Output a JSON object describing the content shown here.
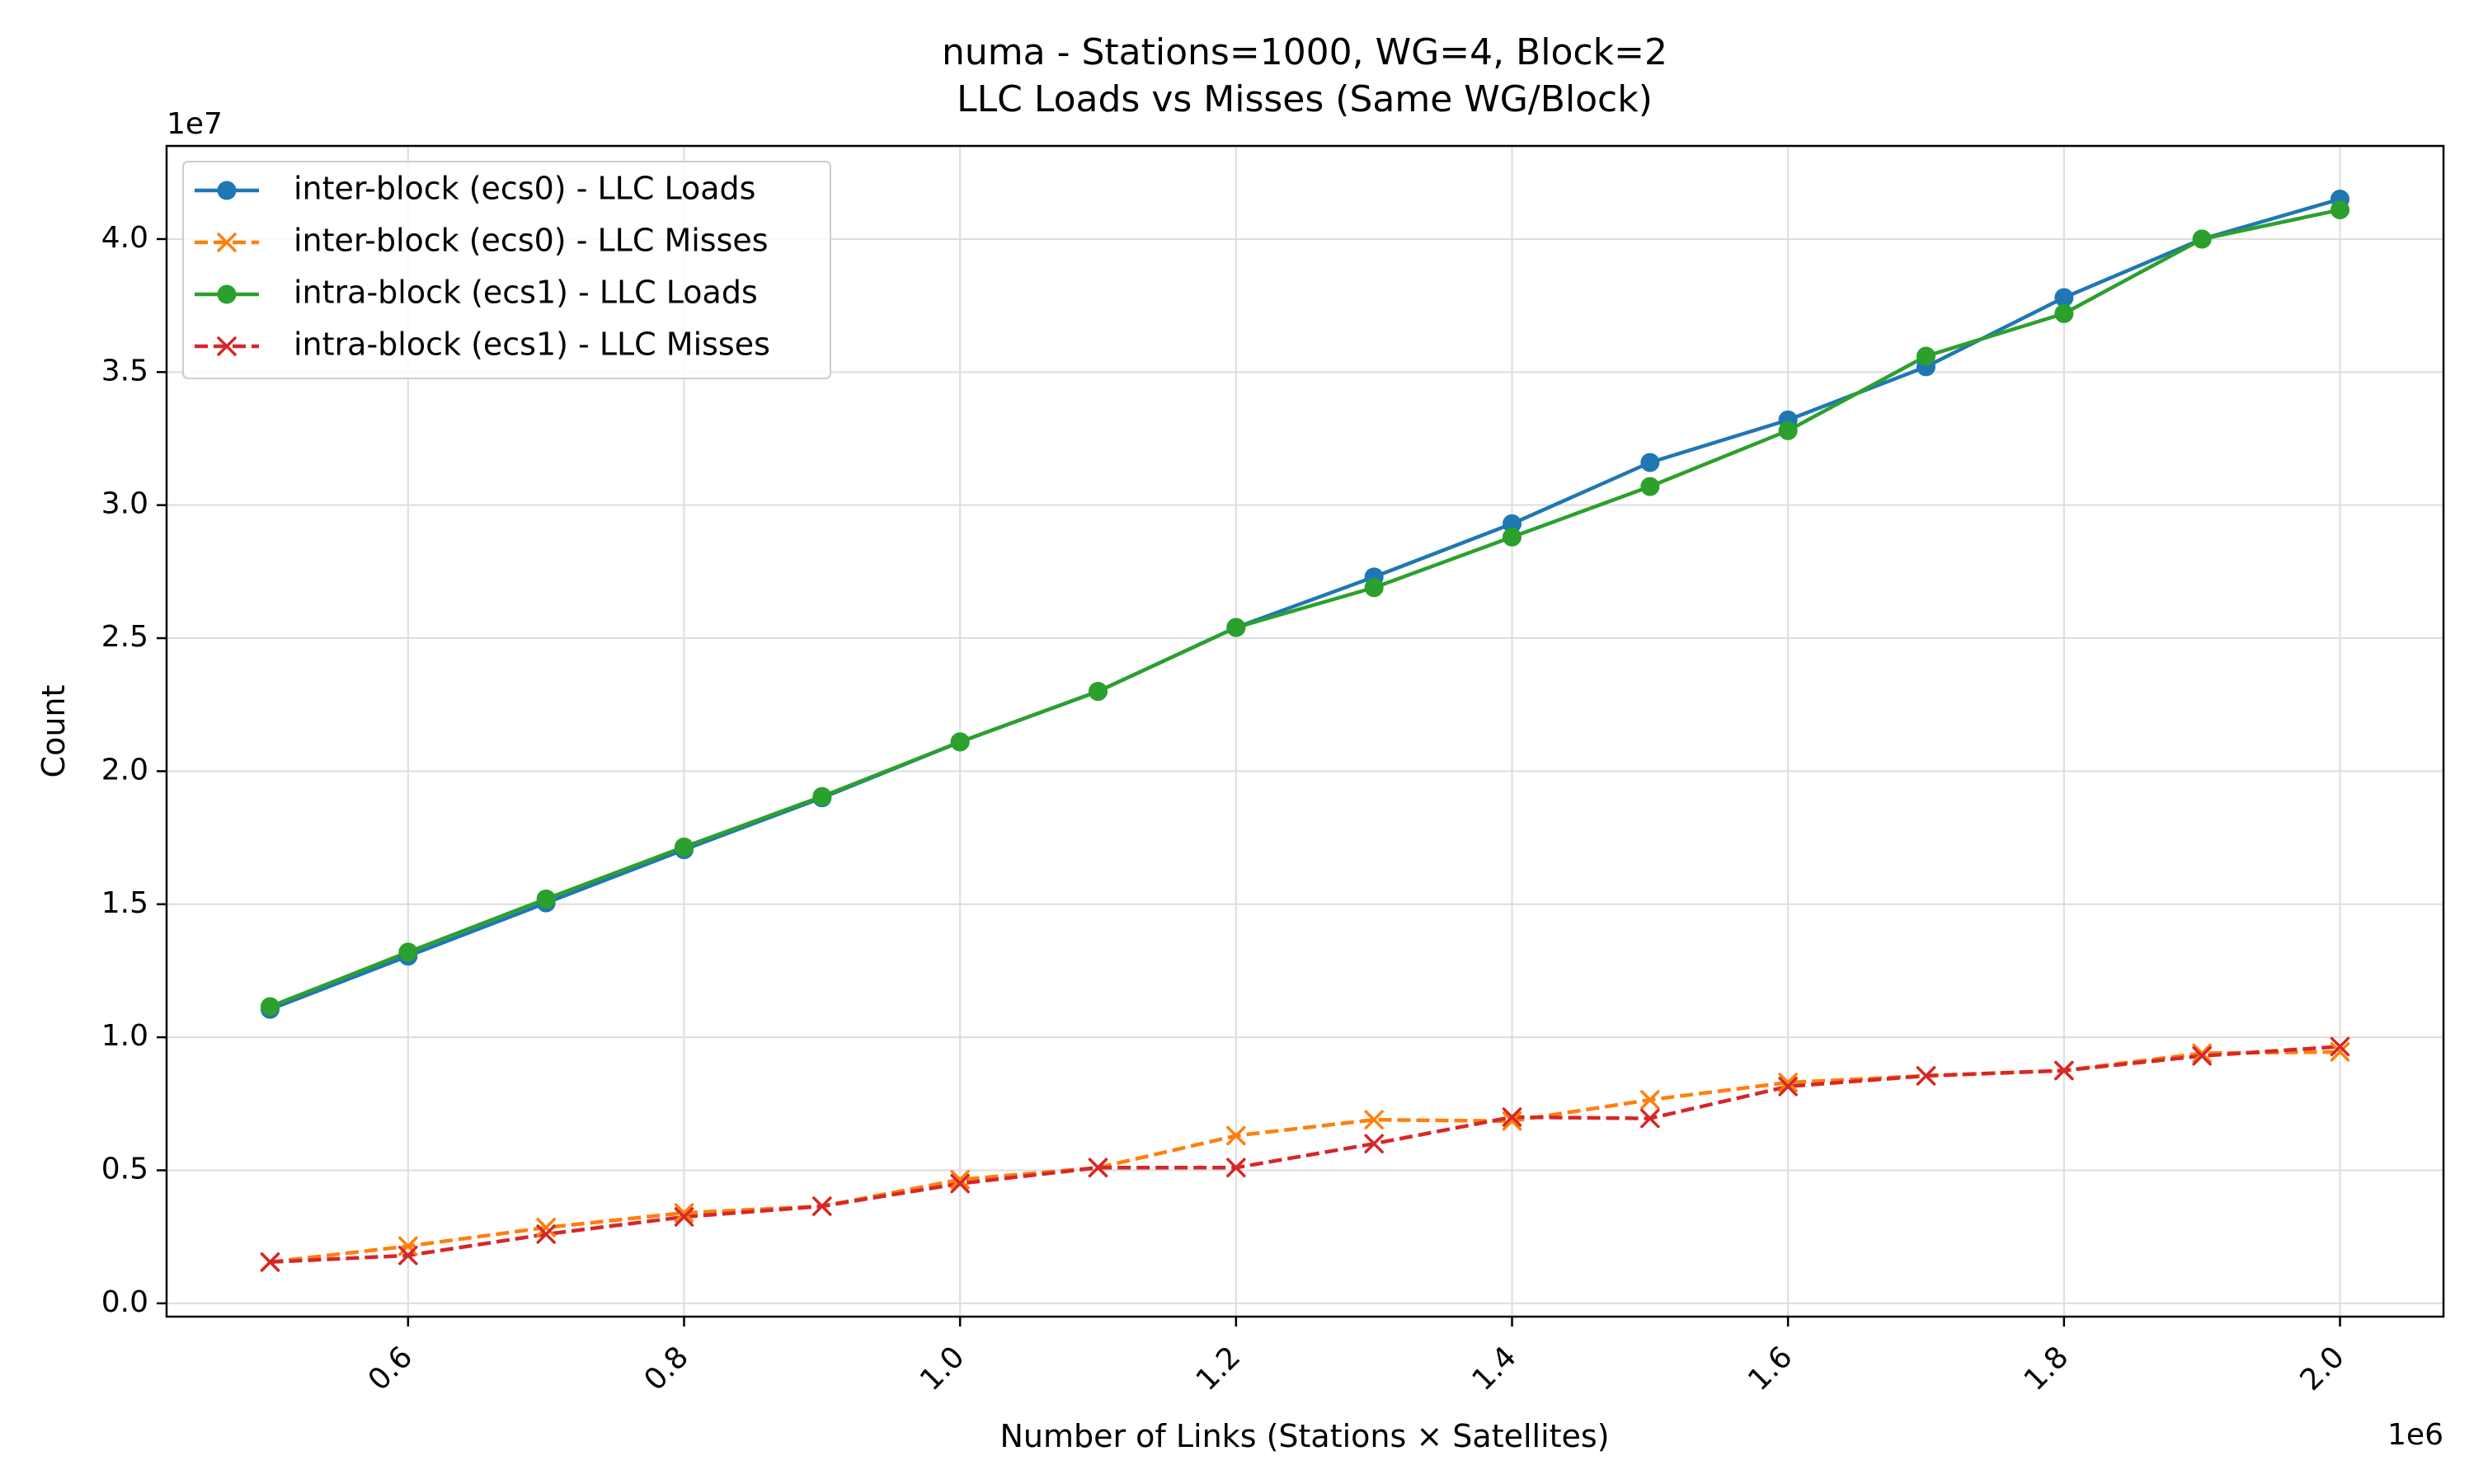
{
  "chart_data": {
    "type": "line",
    "title": "numa - Stations=1000, WG=4, Block=2",
    "subtitle": "LLC Loads vs Misses (Same WG/Block)",
    "xlabel": "Number of Links (Stations × Satellites)",
    "ylabel": "Count",
    "x_offset_label": "1e6",
    "y_offset_label": "1e7",
    "xlim": [
      425000,
      2075000
    ],
    "ylim": [
      -500000,
      43500000
    ],
    "x_ticks": [
      600000,
      800000,
      1000000,
      1200000,
      1400000,
      1600000,
      1800000,
      2000000
    ],
    "x_tick_labels": [
      "0.6",
      "0.8",
      "1.0",
      "1.2",
      "1.4",
      "1.6",
      "1.8",
      "2.0"
    ],
    "y_ticks": [
      0,
      5000000,
      10000000,
      15000000,
      20000000,
      25000000,
      30000000,
      35000000,
      40000000
    ],
    "y_tick_labels": [
      "0.0",
      "0.5",
      "1.0",
      "1.5",
      "2.0",
      "2.5",
      "3.0",
      "3.5",
      "4.0"
    ],
    "grid": true,
    "legend_position": "upper-left",
    "x": [
      500000,
      600000,
      700000,
      800000,
      900000,
      1000000,
      1100000,
      1200000,
      1300000,
      1400000,
      1500000,
      1600000,
      1700000,
      1800000,
      1900000,
      2000000
    ],
    "series": [
      {
        "name": "inter-block (ecs0) - LLC Loads",
        "color": "#1f77b4",
        "line_style": "solid",
        "marker": "circle",
        "values": [
          11050000,
          13050000,
          15050000,
          17050000,
          19000000,
          21100000,
          23000000,
          25400000,
          27300000,
          29300000,
          31600000,
          33200000,
          35200000,
          37800000,
          40000000,
          41500000
        ]
      },
      {
        "name": "inter-block (ecs0) - LLC Misses",
        "color": "#ff7f0e",
        "line_style": "dashed",
        "marker": "x",
        "values": [
          1550000,
          2150000,
          2850000,
          3400000,
          3650000,
          4650000,
          5100000,
          6300000,
          6900000,
          6850000,
          7650000,
          8300000,
          8550000,
          8750000,
          9400000,
          9450000
        ]
      },
      {
        "name": "intra-block (ecs1) - LLC Loads",
        "color": "#2ca02c",
        "line_style": "solid",
        "marker": "circle",
        "values": [
          11150000,
          13200000,
          15200000,
          17150000,
          19050000,
          21100000,
          23000000,
          25400000,
          26900000,
          28800000,
          30700000,
          32800000,
          35600000,
          37200000,
          40000000,
          41100000
        ]
      },
      {
        "name": "intra-block (ecs1) - LLC Misses",
        "color": "#d62728",
        "line_style": "dashed",
        "marker": "x",
        "values": [
          1550000,
          1800000,
          2600000,
          3250000,
          3650000,
          4500000,
          5100000,
          5100000,
          6000000,
          7000000,
          6950000,
          8150000,
          8550000,
          8750000,
          9300000,
          9650000
        ]
      }
    ]
  }
}
